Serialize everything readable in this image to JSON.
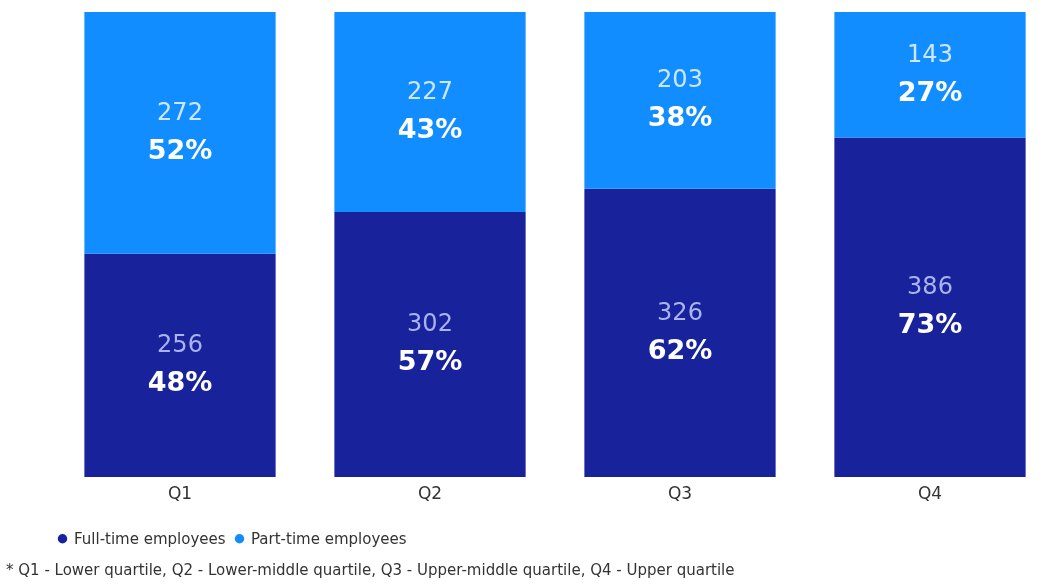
{
  "chart_data": {
    "type": "bar",
    "stacked": true,
    "categories": [
      "Q1",
      "Q2",
      "Q3",
      "Q4"
    ],
    "series": [
      {
        "name": "Full-time employees",
        "color": "#18229b",
        "values": [
          48,
          57,
          62,
          73
        ],
        "value_labels": [
          "48%",
          "57%",
          "62%",
          "73%"
        ]
      },
      {
        "name": "Part-time employees",
        "color": "#118dff",
        "values": [
          52,
          43,
          38,
          27
        ],
        "value_labels": [
          "52%",
          "43%",
          "38%",
          "27%"
        ]
      }
    ],
    "legend": "bottom",
    "annotations": [
      "256",
      "302",
      "326",
      "386",
      "272",
      "227",
      "203",
      "143",
      "* Q1 - Lower quartile, Q2 - Lower-middle quartile, Q3 - Upper-middle quartile,  Q4 - Upper quartile"
    ]
  }
}
